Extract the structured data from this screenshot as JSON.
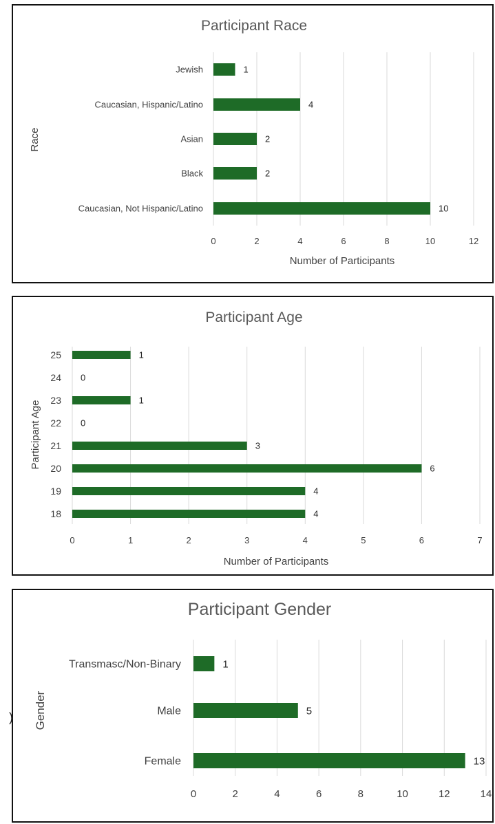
{
  "colors": {
    "bar": "#1e6b27",
    "grid": "#d9d9d9",
    "border": "#111111"
  },
  "chart_data": [
    {
      "type": "bar",
      "orientation": "horizontal",
      "title": "Participant Race",
      "xlabel": "Number of Participants",
      "ylabel": "Race",
      "categories": [
        "Caucasian, Not Hispanic/Latino",
        "Black",
        "Asian",
        "Caucasian, Hispanic/Latino",
        "Jewish"
      ],
      "values": [
        10,
        2,
        2,
        4,
        1
      ],
      "xlim": [
        0,
        12
      ],
      "xticks": [
        "0",
        "2",
        "4",
        "6",
        "8",
        "10",
        "12"
      ],
      "grid": true,
      "data_labels": true
    },
    {
      "type": "bar",
      "orientation": "horizontal",
      "title": "Participant Age",
      "xlabel": "Number of Participants",
      "ylabel": "Participant Age",
      "categories": [
        "18",
        "19",
        "20",
        "21",
        "22",
        "23",
        "24",
        "25"
      ],
      "values": [
        4,
        4,
        6,
        3,
        0,
        1,
        0,
        1
      ],
      "xlim": [
        0,
        7
      ],
      "xticks": [
        "0",
        "1",
        "2",
        "3",
        "4",
        "5",
        "6",
        "7"
      ],
      "grid": true,
      "data_labels": true
    },
    {
      "type": "bar",
      "orientation": "horizontal",
      "title": "Participant Gender",
      "xlabel": "",
      "ylabel": "Gender",
      "categories": [
        "Female",
        "Male",
        "Transmasc/Non-Binary"
      ],
      "values": [
        13,
        5,
        1
      ],
      "xlim": [
        0,
        14
      ],
      "xticks": [
        "0",
        "2",
        "4",
        "6",
        "8",
        "10",
        "12",
        "14"
      ],
      "grid": true,
      "data_labels": true
    }
  ]
}
